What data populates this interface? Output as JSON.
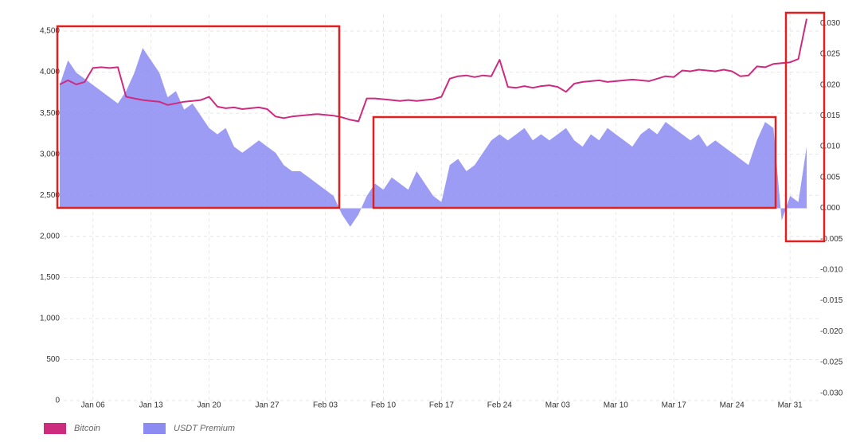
{
  "chart_data": {
    "type": "line-area",
    "x": [
      "Jan 02",
      "Jan 03",
      "Jan 04",
      "Jan 05",
      "Jan 06",
      "Jan 07",
      "Jan 08",
      "Jan 09",
      "Jan 10",
      "Jan 11",
      "Jan 12",
      "Jan 13",
      "Jan 14",
      "Jan 15",
      "Jan 16",
      "Jan 17",
      "Jan 18",
      "Jan 19",
      "Jan 20",
      "Jan 21",
      "Jan 22",
      "Jan 23",
      "Jan 24",
      "Jan 25",
      "Jan 26",
      "Jan 27",
      "Jan 28",
      "Jan 29",
      "Jan 30",
      "Jan 31",
      "Feb 01",
      "Feb 02",
      "Feb 03",
      "Feb 04",
      "Feb 05",
      "Feb 06",
      "Feb 07",
      "Feb 08",
      "Feb 09",
      "Feb 10",
      "Feb 11",
      "Feb 12",
      "Feb 13",
      "Feb 14",
      "Feb 15",
      "Feb 16",
      "Feb 17",
      "Feb 18",
      "Feb 19",
      "Feb 20",
      "Feb 21",
      "Feb 22",
      "Feb 23",
      "Feb 24",
      "Feb 25",
      "Feb 26",
      "Feb 27",
      "Feb 28",
      "Mar 01",
      "Mar 02",
      "Mar 03",
      "Mar 04",
      "Mar 05",
      "Mar 06",
      "Mar 07",
      "Mar 08",
      "Mar 09",
      "Mar 10",
      "Mar 11",
      "Mar 12",
      "Mar 13",
      "Mar 14",
      "Mar 15",
      "Mar 16",
      "Mar 17",
      "Mar 18",
      "Mar 19",
      "Mar 20",
      "Mar 21",
      "Mar 22",
      "Mar 23",
      "Mar 24",
      "Mar 25",
      "Mar 26",
      "Mar 27",
      "Mar 28",
      "Mar 29",
      "Mar 30",
      "Mar 31",
      "Apr 01",
      "Apr 02"
    ],
    "xticks": [
      "Jan 06",
      "Jan 13",
      "Jan 20",
      "Jan 27",
      "Feb 03",
      "Feb 10",
      "Feb 17",
      "Feb 24",
      "Mar 03",
      "Mar 10",
      "Mar 17",
      "Mar 24",
      "Mar 31"
    ],
    "series": [
      {
        "name": "Bitcoin",
        "color": "#cc2b7e",
        "kind": "line",
        "values": [
          3850,
          3900,
          3850,
          3880,
          4050,
          4060,
          4050,
          4060,
          3700,
          3680,
          3660,
          3650,
          3640,
          3600,
          3620,
          3640,
          3650,
          3660,
          3700,
          3580,
          3560,
          3570,
          3550,
          3560,
          3570,
          3550,
          3460,
          3440,
          3460,
          3470,
          3480,
          3490,
          3480,
          3470,
          3450,
          3420,
          3400,
          3680,
          3680,
          3670,
          3660,
          3650,
          3660,
          3650,
          3660,
          3670,
          3700,
          3920,
          3950,
          3960,
          3940,
          3960,
          3950,
          4150,
          3820,
          3810,
          3830,
          3810,
          3830,
          3840,
          3820,
          3760,
          3860,
          3880,
          3890,
          3900,
          3880,
          3890,
          3900,
          3910,
          3900,
          3890,
          3920,
          3950,
          3940,
          4020,
          4010,
          4030,
          4020,
          4010,
          4030,
          4010,
          3950,
          3960,
          4070,
          4060,
          4100,
          4110,
          4120,
          4160,
          4650
        ]
      },
      {
        "name": "USDT Premium",
        "color": "#8b8bf2",
        "kind": "area",
        "axis": "y2",
        "values": [
          0.02,
          0.024,
          0.022,
          0.021,
          0.02,
          0.019,
          0.018,
          0.017,
          0.019,
          0.022,
          0.026,
          0.024,
          0.022,
          0.018,
          0.019,
          0.016,
          0.017,
          0.015,
          0.013,
          0.012,
          0.013,
          0.01,
          0.009,
          0.01,
          0.011,
          0.01,
          0.009,
          0.007,
          0.006,
          0.006,
          0.005,
          0.004,
          0.003,
          0.002,
          -0.001,
          -0.003,
          -0.001,
          0.002,
          0.004,
          0.003,
          0.005,
          0.004,
          0.003,
          0.006,
          0.004,
          0.002,
          0.001,
          0.007,
          0.008,
          0.006,
          0.007,
          0.009,
          0.011,
          0.012,
          0.011,
          0.012,
          0.013,
          0.011,
          0.012,
          0.011,
          0.012,
          0.013,
          0.011,
          0.01,
          0.012,
          0.011,
          0.013,
          0.012,
          0.011,
          0.01,
          0.012,
          0.013,
          0.012,
          0.014,
          0.013,
          0.012,
          0.011,
          0.012,
          0.01,
          0.011,
          0.01,
          0.009,
          0.008,
          0.007,
          0.011,
          0.014,
          0.013,
          -0.002,
          0.002,
          0.001,
          0.01
        ]
      }
    ],
    "ylim": [
      0,
      4700
    ],
    "yticks": [
      0,
      500,
      {
        "value": 1000,
        "label": "1,000"
      },
      {
        "value": 1500,
        "label": "1,500"
      },
      {
        "value": 2000,
        "label": "2,000"
      },
      {
        "value": 2500,
        "label": "2,500"
      },
      {
        "value": 3000,
        "label": "3,000"
      },
      {
        "value": 3500,
        "label": "3,500"
      },
      {
        "value": 4000,
        "label": "4,000"
      },
      {
        "value": 4500,
        "label": "4,500"
      }
    ],
    "y2lim": [
      -0.0312,
      0.0314
    ],
    "y2ticks": [
      {
        "value": -0.03,
        "label": "-0.030"
      },
      -0.025,
      {
        "value": -0.02,
        "label": "-0.020"
      },
      -0.015,
      {
        "value": -0.01,
        "label": "-0.010"
      },
      -0.005,
      {
        "value": 0,
        "label": "0.000"
      },
      0.005,
      {
        "value": 0.01,
        "label": "0.010"
      },
      0.015,
      {
        "value": 0.02,
        "label": "0.020"
      },
      0.025,
      {
        "value": 0.03,
        "label": "0.030"
      }
    ],
    "grid": true,
    "legend": "bottom-left"
  }
}
